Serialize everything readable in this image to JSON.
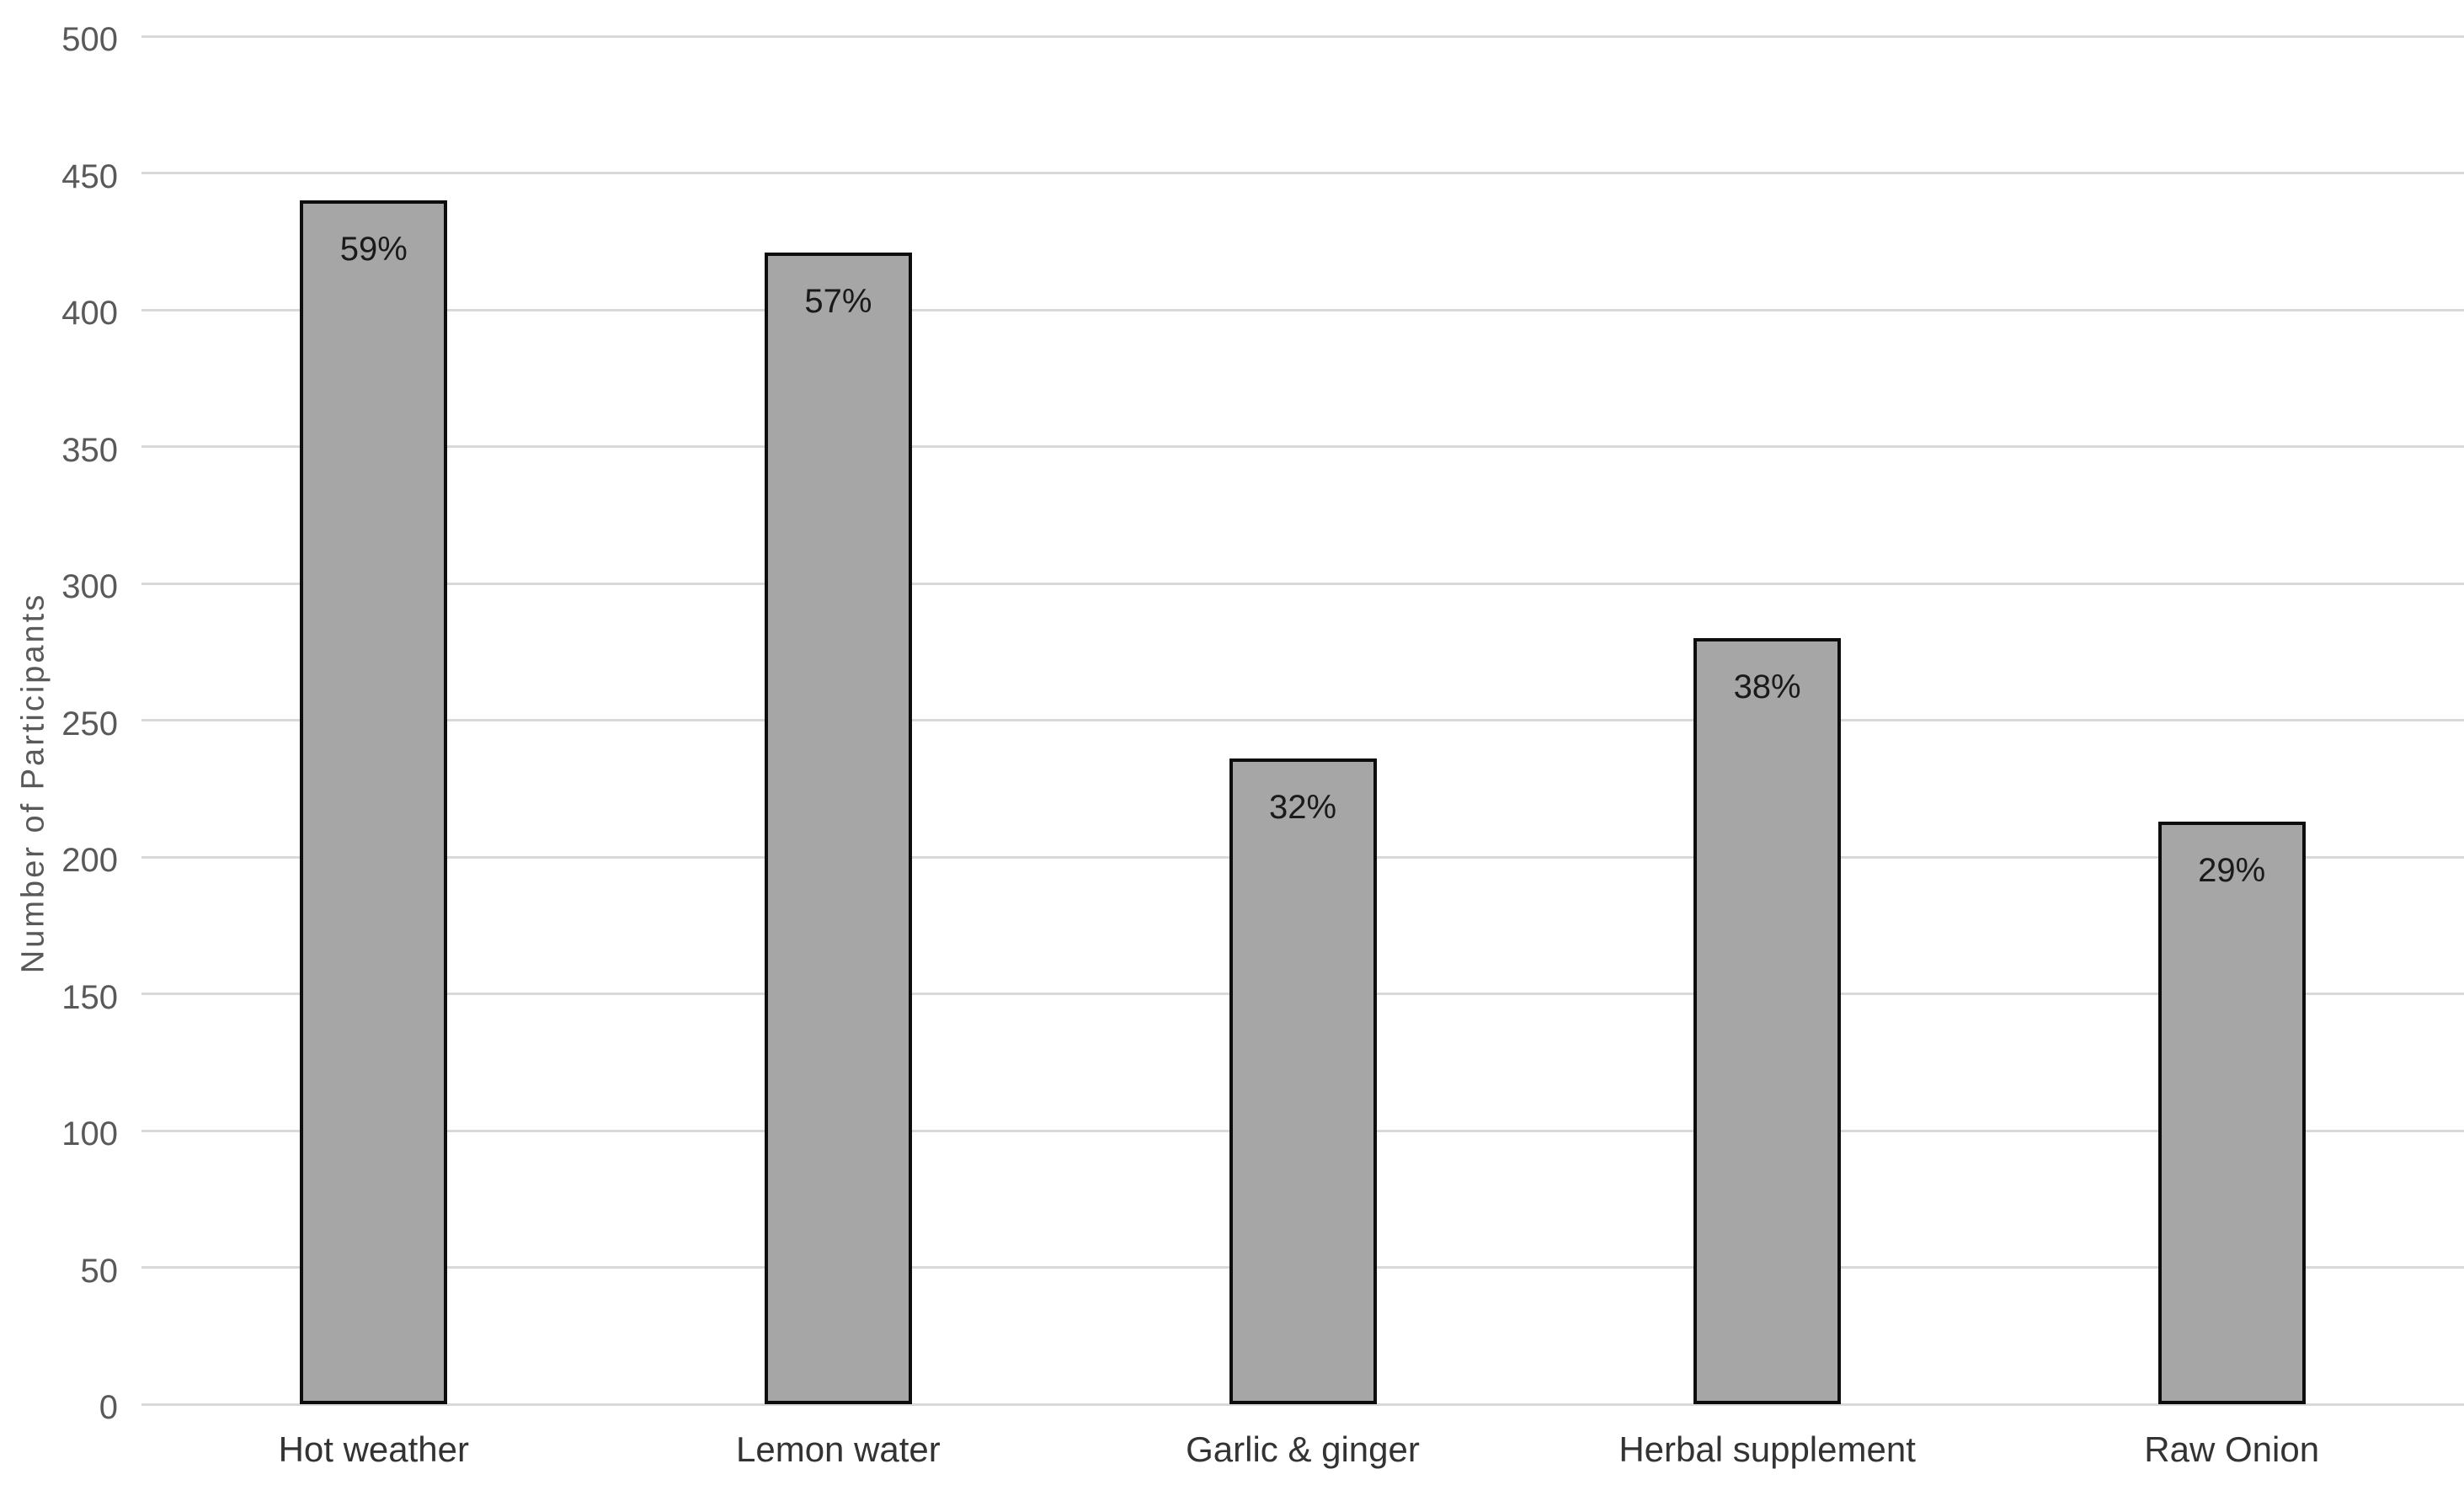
{
  "chart_data": {
    "type": "bar",
    "title": "",
    "xlabel": "",
    "ylabel": "Number of Participants",
    "ylim": [
      0,
      500
    ],
    "ytick_step": 50,
    "yticks": [
      0,
      50,
      100,
      150,
      200,
      250,
      300,
      350,
      400,
      450,
      500
    ],
    "categories": [
      "Hot weather",
      "Lemon water",
      "Garlic & ginger",
      "Herbal supplement",
      "Raw Onion"
    ],
    "series": [
      {
        "name": "Number of Participants",
        "values": [
          440,
          421,
          236,
          280,
          213
        ],
        "data_labels": [
          "59%",
          "57%",
          "32%",
          "38%",
          "29%"
        ]
      }
    ],
    "grid": true,
    "legend": false,
    "colors": {
      "bar_fill": "#a6a6a6",
      "bar_border": "#0d0d0d",
      "gridline": "#d9d9d9",
      "tick_label": "#595959",
      "category_label": "#333333",
      "value_label": "#1a1a1a",
      "background": "#ffffff"
    }
  }
}
